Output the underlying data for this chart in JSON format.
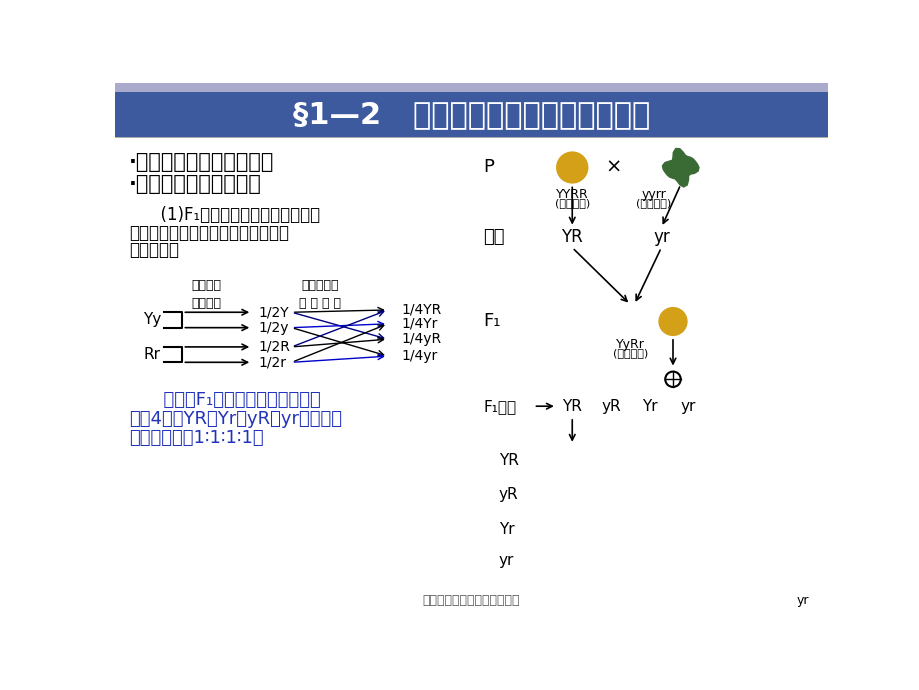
{
  "title": "§1—2   孟德尔的豌豆杂交实验（二）",
  "title_bg_color": "#3d5a9e",
  "title_text_color": "#ffffff",
  "bg_color": "#ffffff",
  "top_strip_color": "#aaaacc",
  "bullet1": "·两对相对性状的杂交实验",
  "bullet2": "·对自由组合现象的解释",
  "body_text1": "      (1)F₁在产生配子时，每对遗传因",
  "body_text2": "子彼此分离，不同对的遗传因子可以",
  "body_text3": "自由组合。",
  "summary_line1": "      这样，F₁产生的雌配子和雄配子",
  "summary_line2": "各有4种：YR、Yr、yR、yr，它们之",
  "summary_line3": "间的数量比为1∶1∶1∶1。",
  "footer": "孟德尔的豌豆杂交实验二优秀",
  "diag_label_left": "同对因子\n彼此分离",
  "diag_label_right": "不同对因子\n自 由 组 合",
  "yellow_color": "#d4a017",
  "green_color": "#3a6b35",
  "summary_color": "#2233bb"
}
